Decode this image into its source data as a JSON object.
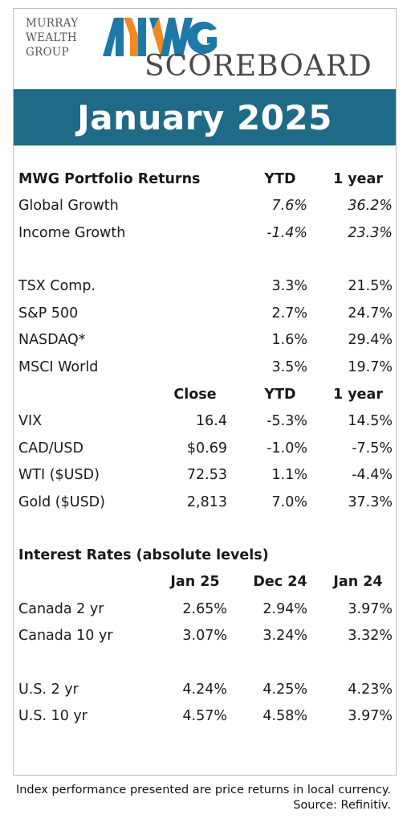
{
  "brand": {
    "wordmark_line1": "MURRAY",
    "wordmark_line2": "WEALTH",
    "wordmark_line3": "GROUP",
    "logo_letters": "MWG",
    "product_name": "SCOREBOARD",
    "colors": {
      "blue": "#1e78a8",
      "orange": "#f08a24",
      "banner": "#1f6a86"
    }
  },
  "title": "January 2025",
  "portfolio": {
    "header": {
      "label": "MWG Portfolio Returns",
      "ytd": "YTD",
      "one_year": "1 year"
    },
    "rows": [
      {
        "name": "Global Growth",
        "ytd": "7.6%",
        "one_year": "36.2%"
      },
      {
        "name": "Income Growth",
        "ytd": "-1.4%",
        "one_year": "23.3%"
      }
    ]
  },
  "indices": {
    "rows": [
      {
        "name": "TSX Comp.",
        "ytd": "3.3%",
        "one_year": "21.5%"
      },
      {
        "name": "S&P 500",
        "ytd": "2.7%",
        "one_year": "24.7%"
      },
      {
        "name": "NASDAQ*",
        "ytd": "1.6%",
        "one_year": "29.4%"
      },
      {
        "name": "MSCI World",
        "ytd": "3.5%",
        "one_year": "19.7%"
      }
    ]
  },
  "markets": {
    "header": {
      "close": "Close",
      "ytd": "YTD",
      "one_year": "1 year"
    },
    "rows": [
      {
        "name": "VIX",
        "close": "16.4",
        "ytd": "-5.3%",
        "one_year": "14.5%"
      },
      {
        "name": "CAD/USD",
        "close": "$0.69",
        "ytd": "-1.0%",
        "one_year": "-7.5%"
      },
      {
        "name": "WTI ($USD)",
        "close": "72.53",
        "ytd": "1.1%",
        "one_year": "-4.4%"
      },
      {
        "name": "Gold ($USD)",
        "close": "2,813",
        "ytd": "7.0%",
        "one_year": "37.3%"
      }
    ]
  },
  "rates": {
    "section_title": "Interest Rates (absolute levels)",
    "header": {
      "col1": "Jan 25",
      "col2": "Dec 24",
      "col3": "Jan 24"
    },
    "rows": [
      {
        "name": "Canada 2 yr",
        "col1": "2.65%",
        "col2": "2.94%",
        "col3": "3.97%"
      },
      {
        "name": "Canada 10 yr",
        "col1": "3.07%",
        "col2": "3.24%",
        "col3": "3.32%"
      },
      {
        "name": "U.S. 2 yr",
        "col1": "4.24%",
        "col2": "4.25%",
        "col3": "4.23%"
      },
      {
        "name": "U.S. 10 yr",
        "col1": "4.57%",
        "col2": "4.58%",
        "col3": "3.97%"
      }
    ]
  },
  "footnote": {
    "line1": "Index performance presented are price returns in local currency.",
    "line2": "Source: Refinitiv."
  }
}
